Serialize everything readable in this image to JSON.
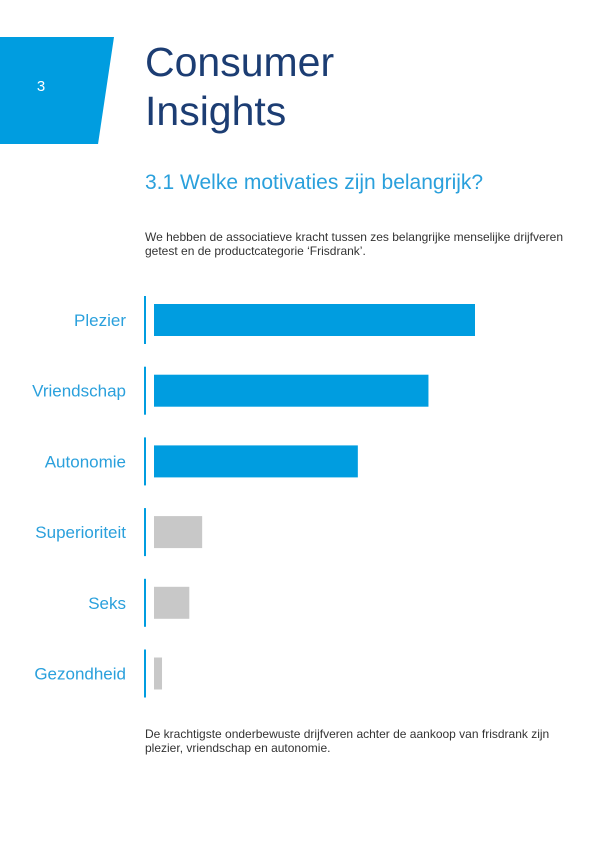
{
  "page_number": "3",
  "title_line1": "Consumer",
  "title_line2": "Insights",
  "subtitle": "3.1 Welke motivaties zijn belangrijk?",
  "intro": "We hebben de associatieve kracht tussen zes belangrijke menselijke drijfveren getest en de productcategorie ‘Frisdrank’.",
  "conclusion": "De krachtigste onderbewuste drijfveren achter de aankoop van frisdrank zijn plezier, vriendschap en autonomie.",
  "colors": {
    "brand_blue": "#009de0",
    "title_navy": "#1c3d73",
    "label_blue": "#2aa0dc",
    "minor_gray": "#c8c8c8"
  },
  "chart_data": {
    "type": "bar",
    "orientation": "horizontal",
    "categories": [
      "Plezier",
      "Vriendschap",
      "Autonomie",
      "Superioriteit",
      "Seks",
      "Gezondheid"
    ],
    "values": [
      100,
      85.5,
      63.5,
      15,
      11,
      2.5
    ],
    "highlight": [
      true,
      true,
      true,
      false,
      false,
      false
    ],
    "xlim": [
      0,
      100
    ],
    "title": "",
    "xlabel": "",
    "ylabel": "",
    "grid": false
  }
}
